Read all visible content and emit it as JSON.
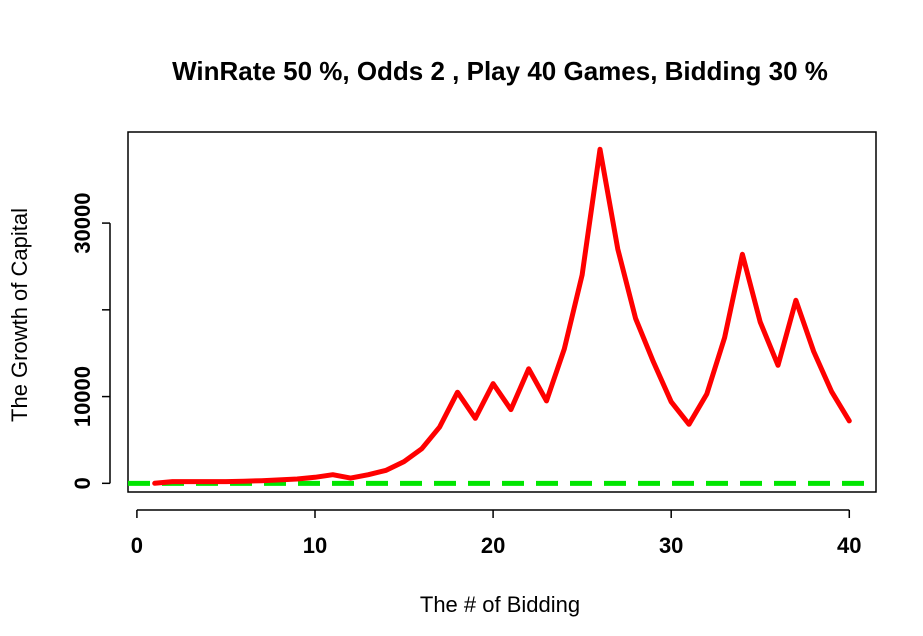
{
  "chart_data": {
    "type": "line",
    "title": "WinRate 50 %, Odds 2 , Play 40 Games,  Bidding 30 %",
    "xlabel": "The # of Bidding",
    "ylabel": "The Growth of Capital",
    "xlim": [
      -0.5,
      41.5
    ],
    "ylim": [
      -1000,
      40500
    ],
    "x_ticks": [
      0,
      10,
      20,
      30,
      40
    ],
    "x_tick_labels": [
      "0",
      "10",
      "20",
      "30",
      "40"
    ],
    "y_ticks": [
      0,
      10000,
      20000,
      30000
    ],
    "y_tick_labels": [
      "0",
      "10000",
      "",
      "30000"
    ],
    "grid": false,
    "colors": {
      "series": "#ff0000",
      "reference": "#00e600",
      "axis": "#000000"
    },
    "series": [
      {
        "line_style": "solid",
        "x": [
          1,
          2,
          3,
          4,
          5,
          6,
          7,
          8,
          9,
          10,
          11,
          12,
          13,
          14,
          15,
          16,
          17,
          18,
          19,
          20,
          21,
          22,
          23,
          24,
          25,
          26,
          27,
          28,
          29,
          30,
          31,
          32,
          33,
          34,
          35,
          36,
          37,
          38,
          39,
          40
        ],
        "y": [
          0,
          200,
          200,
          200,
          200,
          250,
          300,
          400,
          500,
          700,
          1000,
          600,
          1000,
          1500,
          2500,
          4000,
          6500,
          10500,
          7500,
          11500,
          8500,
          13200,
          9500,
          15500,
          24000,
          38500,
          27000,
          19000,
          14000,
          9400,
          6800,
          10300,
          16800,
          26400,
          18600,
          13600,
          21100,
          15200,
          10600,
          7200
        ]
      },
      {
        "line_style": "dashed",
        "x": [
          -0.5,
          41.5
        ],
        "y": [
          0,
          0
        ]
      }
    ]
  }
}
